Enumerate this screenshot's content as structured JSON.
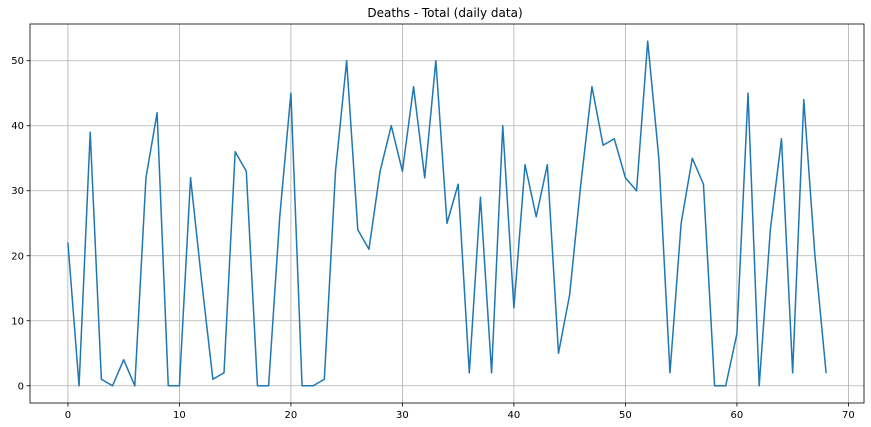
{
  "chart_data": {
    "type": "line",
    "title": "Deaths - Total (daily data)",
    "xlabel": "",
    "ylabel": "",
    "xlim": [
      -3.4,
      71.4
    ],
    "ylim": [
      -2.65,
      55.65
    ],
    "xticks": [
      0,
      10,
      20,
      30,
      40,
      50,
      60,
      70
    ],
    "yticks": [
      0,
      10,
      20,
      30,
      40,
      50
    ],
    "grid": true,
    "series": [
      {
        "color": "#1f77b4",
        "x": [
          0,
          1,
          2,
          3,
          4,
          5,
          6,
          7,
          8,
          9,
          10,
          11,
          12,
          13,
          14,
          15,
          16,
          17,
          18,
          19,
          20,
          21,
          22,
          23,
          24,
          25,
          26,
          27,
          28,
          29,
          30,
          31,
          32,
          33,
          34,
          35,
          36,
          37,
          38,
          39,
          40,
          41,
          42,
          43,
          44,
          45,
          46,
          47,
          48,
          49,
          50,
          51,
          52,
          53,
          54,
          55,
          56,
          57,
          58,
          59,
          60,
          61,
          62,
          63,
          64,
          65,
          66,
          67,
          68
        ],
        "values": [
          22,
          0,
          39,
          1,
          0,
          4,
          0,
          32,
          42,
          0,
          0,
          32,
          16,
          1,
          2,
          36,
          33,
          0,
          0,
          26,
          45,
          0,
          0,
          1,
          33,
          50,
          24,
          21,
          33,
          40,
          33,
          46,
          32,
          50,
          25,
          31,
          2,
          29,
          2,
          40,
          12,
          34,
          26,
          34,
          5,
          14,
          31,
          46,
          37,
          38,
          32,
          30,
          53,
          35,
          2,
          25,
          35,
          31,
          0,
          0,
          8,
          45,
          0,
          24,
          38,
          2,
          44,
          20,
          2
        ]
      }
    ]
  }
}
